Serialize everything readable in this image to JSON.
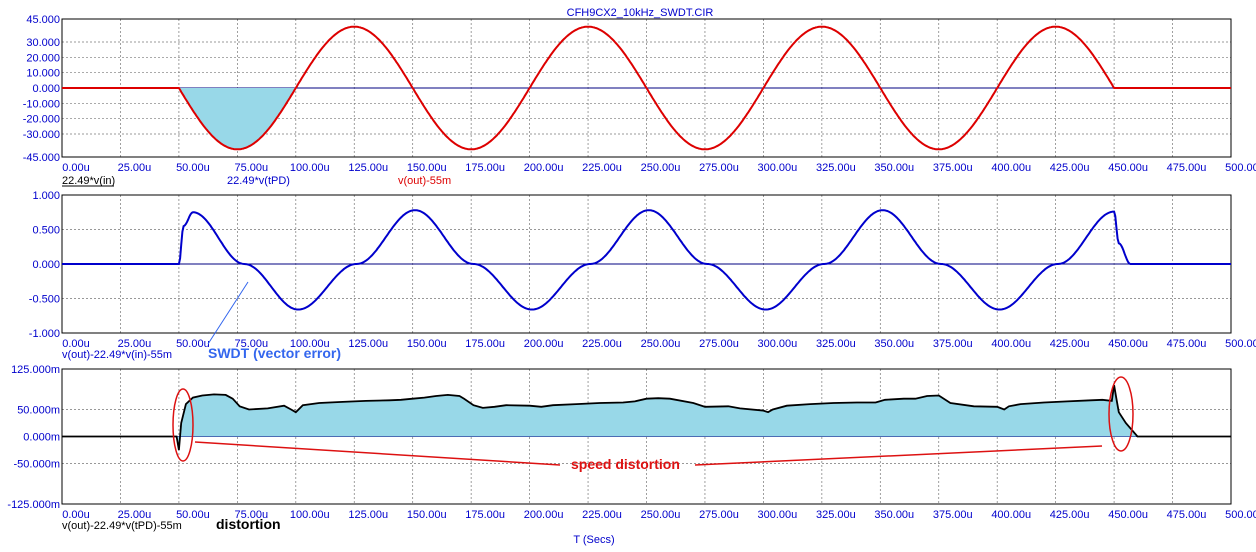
{
  "title": "CFH9CX2_10kHz_SWDT.CIR",
  "xlabel": "T (Secs)",
  "colors": {
    "axis_text": "#0000cc",
    "panel1_curve": "#dd0000",
    "panel2_curve": "#0000cc",
    "panel3_curve": "#000000",
    "fill": "#98d8e8",
    "annotation_blue": "#3366ee",
    "annotation_red": "#dd1111",
    "grid": "#777777"
  },
  "x_ticks": [
    "0.00u",
    "25.00u",
    "50.00u",
    "75.00u",
    "100.00u",
    "125.00u",
    "150.00u",
    "175.00u",
    "200.00u",
    "225.00u",
    "250.00u",
    "275.00u",
    "300.00u",
    "325.00u",
    "350.00u",
    "375.00u",
    "400.00u",
    "425.00u",
    "450.00u",
    "475.00u",
    "500.00u"
  ],
  "panels": [
    {
      "y_ticks": [
        "45.000",
        "30.000",
        "20.000",
        "10.000",
        "0.000",
        "-10.000",
        "-20.000",
        "-30.000",
        "-45.000"
      ],
      "legends": [
        "22.49*v(in)",
        "22.49*v(tPD)",
        "v(out)-55m"
      ]
    },
    {
      "y_ticks": [
        "1.000",
        "0.500",
        "0.000",
        "-0.500",
        "-1.000"
      ],
      "legends": [
        "v(out)-22.49*v(in)-55m"
      ]
    },
    {
      "y_ticks": [
        "125.000m",
        "50.000m",
        "0.000m",
        "-50.000m",
        "-125.000m"
      ],
      "legends": [
        "v(out)-22.49*v(tPD)-55m"
      ]
    }
  ],
  "annotations": {
    "swdt": "SWDT (vector error)",
    "speed": "speed distortion",
    "distortion": "distortion"
  },
  "chart_data": [
    {
      "type": "line",
      "title": "CFH9CX2_10kHz_SWDT.CIR",
      "xlabel": "",
      "ylabel": "",
      "x_unit": "us",
      "xlim": [
        0,
        500
      ],
      "ylim": [
        -45,
        45
      ],
      "grid": true,
      "series": [
        {
          "name": "v(out)-55m",
          "description": "zero until 50u, then 10 kHz sine of amplitude 40 starting negative (-sin), returning to 0 at 450u",
          "x": [
            0,
            50,
            75,
            100,
            125,
            150,
            175,
            200,
            225,
            250,
            275,
            300,
            325,
            350,
            375,
            400,
            425,
            450,
            455,
            500
          ],
          "y": [
            0,
            0,
            -40,
            0,
            40,
            0,
            -40,
            0,
            40,
            0,
            -40,
            0,
            40,
            0,
            -40,
            0,
            40,
            0,
            0,
            0
          ]
        }
      ],
      "shaded_region": {
        "x": [
          50,
          100
        ],
        "description": "area between curve and zero, first negative half-cycle"
      }
    },
    {
      "type": "line",
      "xlabel": "",
      "ylabel": "",
      "x_unit": "us",
      "xlim": [
        0,
        500
      ],
      "ylim": [
        -1,
        1
      ],
      "grid": true,
      "series": [
        {
          "name": "v(out)-22.49*v(in)-55m",
          "x": [
            0,
            50,
            52,
            56,
            78,
            101,
            126,
            151,
            176,
            201,
            226,
            251,
            276,
            301,
            326,
            351,
            376,
            401,
            426,
            450,
            452,
            457,
            500
          ],
          "y": [
            0,
            0,
            0.55,
            0.75,
            0.0,
            -0.66,
            0.0,
            0.78,
            0.0,
            -0.66,
            0.0,
            0.78,
            0.0,
            -0.66,
            0.0,
            0.78,
            0.0,
            -0.66,
            0.0,
            0.76,
            0.3,
            0.0,
            0
          ]
        }
      ]
    },
    {
      "type": "area",
      "xlabel": "T (Secs)",
      "ylabel": "",
      "x_unit": "us",
      "xlim": [
        0,
        500
      ],
      "ylim": [
        -125,
        125
      ],
      "y_unit": "m",
      "grid": true,
      "series": [
        {
          "name": "v(out)-22.49*v(tPD)-55m",
          "x": [
            0,
            49,
            50,
            51,
            53,
            56,
            60,
            65,
            70,
            73,
            76,
            80,
            88,
            95,
            98,
            100,
            103,
            110,
            120,
            130,
            140,
            145,
            150,
            155,
            160,
            165,
            170,
            172,
            176,
            180,
            185,
            190,
            200,
            205,
            210,
            220,
            230,
            240,
            245,
            250,
            255,
            260,
            270,
            275,
            285,
            290,
            300,
            302,
            304,
            310,
            320,
            330,
            340,
            348,
            352,
            360,
            365,
            370,
            375,
            380,
            390,
            400,
            403,
            405,
            410,
            420,
            430,
            440,
            445,
            449,
            450,
            451,
            452,
            455,
            460,
            500
          ],
          "y": [
            0,
            0,
            -25,
            25,
            60,
            72,
            76,
            78,
            77,
            70,
            56,
            50,
            52,
            57,
            50,
            45,
            58,
            62,
            64,
            66,
            67,
            68,
            70,
            72,
            75,
            77,
            75,
            70,
            58,
            53,
            55,
            58,
            57,
            55,
            58,
            60,
            62,
            63,
            65,
            70,
            71,
            70,
            62,
            55,
            56,
            52,
            48,
            45,
            50,
            57,
            60,
            62,
            63,
            63,
            68,
            70,
            70,
            75,
            76,
            62,
            56,
            55,
            50,
            56,
            60,
            63,
            65,
            67,
            68,
            66,
            95,
            70,
            45,
            25,
            0,
            0
          ]
        }
      ],
      "annotations": [
        "speed distortion",
        "distortion"
      ]
    }
  ]
}
